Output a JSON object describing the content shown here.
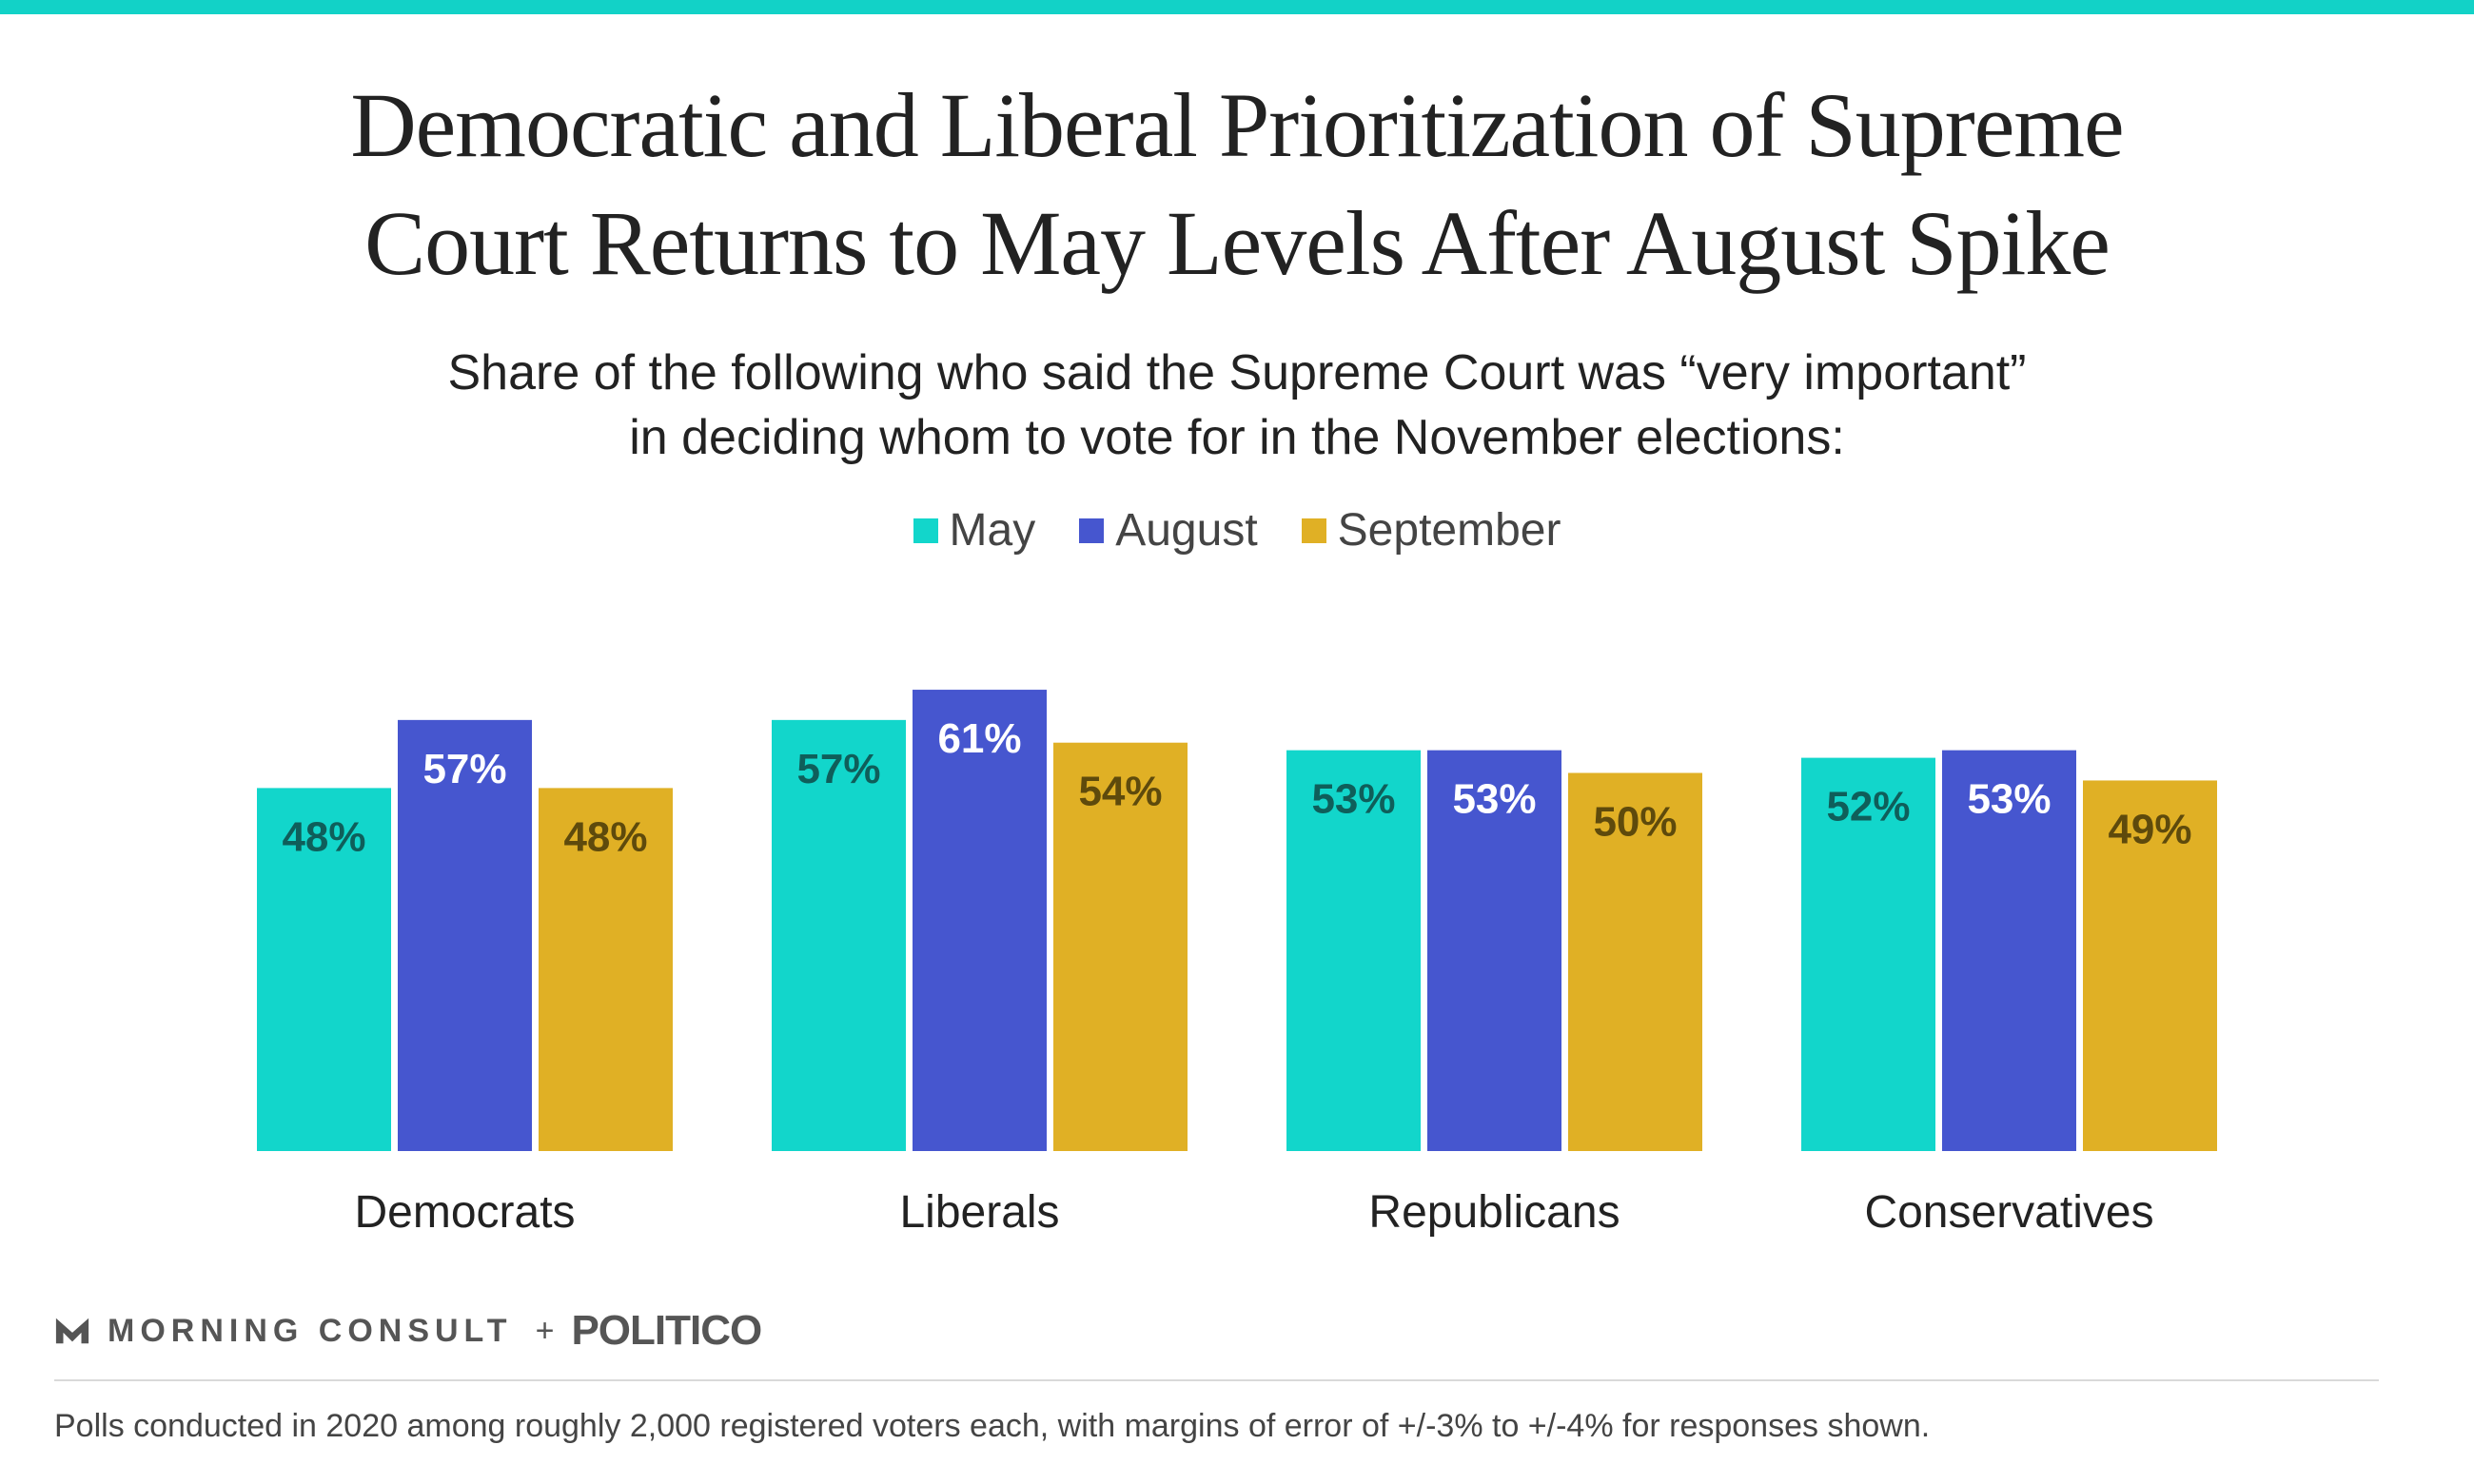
{
  "colors": {
    "accent_bar": "#12d2c7",
    "may": "#12d6cb",
    "august": "#4656cf",
    "september": "#e0b025"
  },
  "header": {
    "title_line1": "Democratic and Liberal Prioritization of Supreme",
    "title_line2": "Court Returns to May Levels After August Spike",
    "subtitle_line1": "Share of the following who said the Supreme Court was “very important”",
    "subtitle_line2": "in deciding whom to vote for in the November elections:"
  },
  "chart_data": {
    "type": "bar",
    "title": "Democratic and Liberal Prioritization of Supreme Court Returns to May Levels After August Spike",
    "subtitle": "Share of the following who said the Supreme Court was “very important” in deciding whom to vote for in the November elections:",
    "categories": [
      "Democrats",
      "Liberals",
      "Republicans",
      "Conservatives"
    ],
    "series": [
      {
        "name": "May",
        "values": [
          48,
          57,
          53,
          52
        ],
        "color": "#12d6cb",
        "label_color": "#0f5e5a"
      },
      {
        "name": "August",
        "values": [
          57,
          61,
          53,
          53
        ],
        "color": "#4656cf",
        "label_color": "#ffffff"
      },
      {
        "name": "September",
        "values": [
          48,
          54,
          50,
          49
        ],
        "color": "#e0b025",
        "label_color": "#5e4a0c"
      }
    ],
    "value_suffix": "%",
    "ylim": [
      0,
      100
    ],
    "legend_position": "top-center",
    "grid": false,
    "xlabel": "",
    "ylabel": ""
  },
  "footer": {
    "brand_left": "MORNING CONSULT",
    "brand_plus": "+",
    "brand_right": "POLITICO",
    "note": "Polls conducted in 2020 among roughly 2,000 registered voters each, with margins of error of +/-3% to +/-4% for responses shown."
  }
}
